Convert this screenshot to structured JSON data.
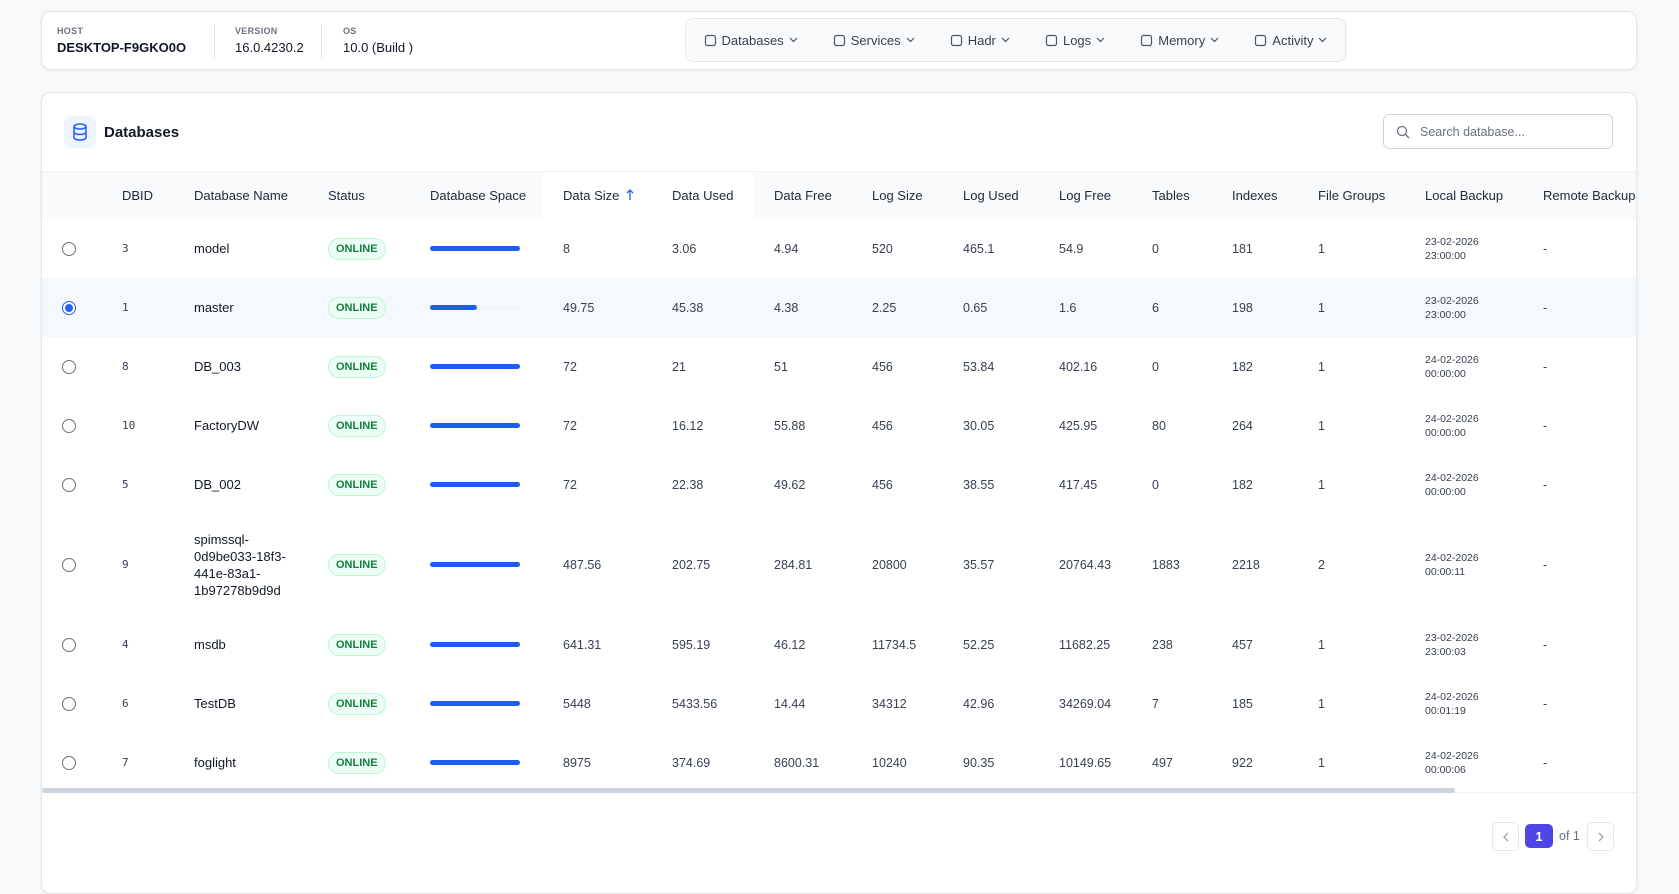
{
  "header": {
    "host_label": "HOST",
    "host": "DESKTOP-F9GKO0O",
    "version_label": "VERSION",
    "version": "16.0.4230.2",
    "os_label": "OS",
    "os": "10.0 (Build )",
    "nav": [
      "Databases",
      "Services",
      "Hadr",
      "Logs",
      "Memory",
      "Activity"
    ]
  },
  "panel": {
    "title": "Databases",
    "search_placeholder": "Search database...",
    "columns": [
      "DBID",
      "Database Name",
      "Status",
      "Database Space",
      "Data Size",
      "Data Used",
      "Data Free",
      "Log Size",
      "Log Used",
      "Log Free",
      "Tables",
      "Indexes",
      "File Groups",
      "Local Backup",
      "Remote Backup"
    ],
    "rows": [
      {
        "selected": false,
        "dbid": 3,
        "name": "model",
        "status": "ONLINE",
        "space": 100,
        "data_size": 8,
        "data_used": 3.06,
        "data_free": 4.94,
        "log_size": 520,
        "log_used": 465.1,
        "log_free": 54.9,
        "tables": 0,
        "indexes": 181,
        "file_groups": 1,
        "local_backup": "23-02-2026 23:00:00",
        "remote_backup": "-"
      },
      {
        "selected": true,
        "dbid": 1,
        "name": "master",
        "status": "ONLINE",
        "space": 52,
        "data_size": 49.75,
        "data_used": 45.38,
        "data_free": 4.38,
        "log_size": 2.25,
        "log_used": 0.65,
        "log_free": 1.6,
        "tables": 6,
        "indexes": 198,
        "file_groups": 1,
        "local_backup": "23-02-2026 23:00:00",
        "remote_backup": "-"
      },
      {
        "selected": false,
        "dbid": 8,
        "name": "DB_003",
        "status": "ONLINE",
        "space": 100,
        "data_size": 72,
        "data_used": 21,
        "data_free": 51,
        "log_size": 456,
        "log_used": 53.84,
        "log_free": 402.16,
        "tables": 0,
        "indexes": 182,
        "file_groups": 1,
        "local_backup": "24-02-2026 00:00:00",
        "remote_backup": "-"
      },
      {
        "selected": false,
        "dbid": 10,
        "name": "FactoryDW",
        "status": "ONLINE",
        "space": 100,
        "data_size": 72,
        "data_used": 16.12,
        "data_free": 55.88,
        "log_size": 456,
        "log_used": 30.05,
        "log_free": 425.95,
        "tables": 80,
        "indexes": 264,
        "file_groups": 1,
        "local_backup": "24-02-2026 00:00:00",
        "remote_backup": "-"
      },
      {
        "selected": false,
        "dbid": 5,
        "name": "DB_002",
        "status": "ONLINE",
        "space": 100,
        "data_size": 72,
        "data_used": 22.38,
        "data_free": 49.62,
        "log_size": 456,
        "log_used": 38.55,
        "log_free": 417.45,
        "tables": 0,
        "indexes": 182,
        "file_groups": 1,
        "local_backup": "24-02-2026 00:00:00",
        "remote_backup": "-"
      },
      {
        "selected": false,
        "dbid": 9,
        "name": "spimssql-0d9be033-18f3-441e-83a1-1b97278b9d9d",
        "status": "ONLINE",
        "space": 100,
        "data_size": 487.56,
        "data_used": 202.75,
        "data_free": 284.81,
        "log_size": 20800,
        "log_used": 35.57,
        "log_free": 20764.43,
        "tables": 1883,
        "indexes": 2218,
        "file_groups": 2,
        "local_backup": "24-02-2026 00:00:11",
        "remote_backup": "-"
      },
      {
        "selected": false,
        "dbid": 4,
        "name": "msdb",
        "status": "ONLINE",
        "space": 100,
        "data_size": 641.31,
        "data_used": 595.19,
        "data_free": 46.12,
        "log_size": 11734.5,
        "log_used": 52.25,
        "log_free": 11682.25,
        "tables": 238,
        "indexes": 457,
        "file_groups": 1,
        "local_backup": "23-02-2026 23:00:03",
        "remote_backup": "-"
      },
      {
        "selected": false,
        "dbid": 6,
        "name": "TestDB",
        "status": "ONLINE",
        "space": 100,
        "data_size": 5448,
        "data_used": 5433.56,
        "data_free": 14.44,
        "log_size": 34312,
        "log_used": 42.96,
        "log_free": 34269.04,
        "tables": 7,
        "indexes": 185,
        "file_groups": 1,
        "local_backup": "24-02-2026 00:01:19",
        "remote_backup": "-"
      },
      {
        "selected": false,
        "dbid": 7,
        "name": "foglight",
        "status": "ONLINE",
        "space": 100,
        "data_size": 8975,
        "data_used": 374.69,
        "data_free": 8600.31,
        "log_size": 10240,
        "log_used": 90.35,
        "log_free": 10149.65,
        "tables": 497,
        "indexes": 922,
        "file_groups": 1,
        "local_backup": "24-02-2026 00:00:06",
        "remote_backup": "-"
      }
    ],
    "pagination": {
      "page": 1,
      "total_label": "of 1"
    }
  }
}
